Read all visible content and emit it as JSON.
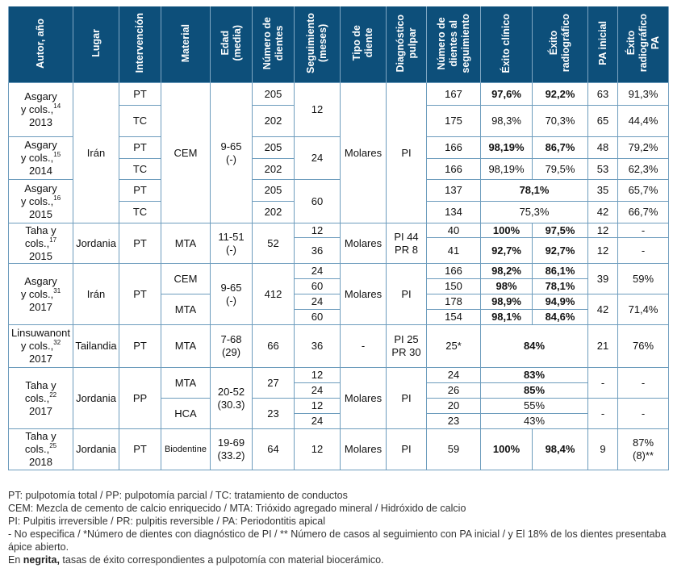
{
  "colors": {
    "header_bg": "#0d4f7a",
    "border": "#6d9cbd"
  },
  "table": {
    "headers": [
      "Autor, año",
      "Lugar",
      "Intervención",
      "Material",
      "Edad\n(media)",
      "Número de\ndientes",
      "Seguimiento\n(meses)",
      "Tipo de\ndiente",
      "Diagnóstico\npulpar",
      "Número de\ndientes al\nseguimiento",
      "Éxito clínico",
      "Éxito\nradiográfico",
      "PA inicial",
      "Éxito\nradiográfico\nPA"
    ],
    "rows": [
      [
        {
          "author": "Asgary\ny cols.,",
          "ref": "14",
          "year": "2013",
          "rs": 2
        },
        {
          "t": "Irán",
          "rs": 6
        },
        {
          "t": "PT"
        },
        {
          "t": "CEM",
          "rs": 6
        },
        {
          "t": "9-65\n(-)",
          "rs": 6
        },
        {
          "t": "205"
        },
        {
          "t": "12",
          "rs": 2
        },
        {
          "t": "Molares",
          "rs": 6
        },
        {
          "t": "PI",
          "rs": 6
        },
        {
          "t": "167"
        },
        {
          "t": "97,6%",
          "b": true
        },
        {
          "t": "92,2%",
          "b": true
        },
        {
          "t": "63"
        },
        {
          "t": "91,3%"
        }
      ],
      [
        {
          "t": "TC"
        },
        {
          "t": "202"
        },
        {
          "t": "175"
        },
        {
          "t": "98,3%"
        },
        {
          "t": "70,3%"
        },
        {
          "t": "65"
        },
        {
          "t": "44,4%"
        }
      ],
      [
        {
          "author": "Asgary\ny cols.,",
          "ref": "15",
          "year": "2014",
          "rs": 2
        },
        {
          "t": "PT"
        },
        {
          "t": "205"
        },
        {
          "t": "24",
          "rs": 2
        },
        {
          "t": "166"
        },
        {
          "t": "98,19%",
          "b": true
        },
        {
          "t": "86,7%",
          "b": true
        },
        {
          "t": "48"
        },
        {
          "t": "79,2%"
        }
      ],
      [
        {
          "t": "TC"
        },
        {
          "t": "202"
        },
        {
          "t": "166"
        },
        {
          "t": "98,19%"
        },
        {
          "t": "79,5%"
        },
        {
          "t": "53"
        },
        {
          "t": "62,3%"
        }
      ],
      [
        {
          "author": "Asgary\ny cols.,",
          "ref": "16",
          "year": "2015",
          "rs": 2
        },
        {
          "t": "PT"
        },
        {
          "t": "205"
        },
        {
          "t": "60",
          "rs": 2
        },
        {
          "t": "137"
        },
        {
          "t": "78,1%",
          "b": true,
          "cs": 2
        },
        {
          "t": "35"
        },
        {
          "t": "65,7%"
        }
      ],
      [
        {
          "t": "TC"
        },
        {
          "t": "202"
        },
        {
          "t": "134"
        },
        {
          "t": "75,3%",
          "cs": 2
        },
        {
          "t": "42"
        },
        {
          "t": "66,7%"
        }
      ],
      [
        {
          "author": "Taha y\ncols.,",
          "ref": "17",
          "year": "2015",
          "rs": 2
        },
        {
          "t": "Jordania",
          "rs": 2
        },
        {
          "t": "PT",
          "rs": 2
        },
        {
          "t": "MTA",
          "rs": 2
        },
        {
          "t": "11-51\n(-)",
          "rs": 2
        },
        {
          "t": "52",
          "rs": 2
        },
        {
          "t": "12"
        },
        {
          "t": "Molares",
          "rs": 2
        },
        {
          "t": "PI 44\nPR 8",
          "rs": 2
        },
        {
          "t": "40"
        },
        {
          "t": "100%",
          "b": true
        },
        {
          "t": "97,5%",
          "b": true
        },
        {
          "t": "12"
        },
        {
          "t": "-"
        }
      ],
      [
        {
          "t": "36"
        },
        {
          "t": "41"
        },
        {
          "t": "92,7%",
          "b": true
        },
        {
          "t": "92,7%",
          "b": true
        },
        {
          "t": "12"
        },
        {
          "t": "-"
        }
      ],
      [
        {
          "author": "Asgary\ny cols.,",
          "ref": "31",
          "year": "2017",
          "rs": 4
        },
        {
          "t": "Irán",
          "rs": 4
        },
        {
          "t": "PT",
          "rs": 4
        },
        {
          "t": "CEM",
          "rs": 2
        },
        {
          "t": "9-65\n(-)",
          "rs": 4
        },
        {
          "t": "412",
          "rs": 4
        },
        {
          "t": "24"
        },
        {
          "t": "Molares",
          "rs": 4
        },
        {
          "t": "PI",
          "rs": 4
        },
        {
          "t": "166"
        },
        {
          "t": "98,2%",
          "b": true
        },
        {
          "t": "86,1%",
          "b": true
        },
        {
          "t": "39",
          "rs": 2
        },
        {
          "t": "59%",
          "rs": 2
        }
      ],
      [
        {
          "t": "60"
        },
        {
          "t": "150"
        },
        {
          "t": "98%",
          "b": true
        },
        {
          "t": "78,1%",
          "b": true
        }
      ],
      [
        {
          "t": "MTA",
          "rs": 2
        },
        {
          "t": "24"
        },
        {
          "t": "178"
        },
        {
          "t": "98,9%",
          "b": true
        },
        {
          "t": "94,9%",
          "b": true
        },
        {
          "t": "42",
          "rs": 2
        },
        {
          "t": "71,4%",
          "rs": 2
        }
      ],
      [
        {
          "t": "60"
        },
        {
          "t": "154"
        },
        {
          "t": "98,1%",
          "b": true
        },
        {
          "t": "84,6%",
          "b": true
        }
      ],
      [
        {
          "author": "Linsuwanont\ny cols.,",
          "ref": "32",
          "year": "2017"
        },
        {
          "t": "Tailandia"
        },
        {
          "t": "PT"
        },
        {
          "t": "MTA"
        },
        {
          "t": "7-68\n(29)"
        },
        {
          "t": "66"
        },
        {
          "t": "36"
        },
        {
          "t": "-"
        },
        {
          "t": "PI 25\nPR 30"
        },
        {
          "t": "25*"
        },
        {
          "t": "84%",
          "b": true,
          "cs": 2
        },
        {
          "t": "21"
        },
        {
          "t": "76%"
        }
      ],
      [
        {
          "author": "Taha y\ncols.,",
          "ref": "22",
          "year": "2017",
          "rs": 4
        },
        {
          "t": "Jordania",
          "rs": 4
        },
        {
          "t": "PP",
          "rs": 4
        },
        {
          "t": "MTA",
          "rs": 2
        },
        {
          "t": "20-52\n(30.3)",
          "rs": 4
        },
        {
          "t": "27",
          "rs": 2
        },
        {
          "t": "12"
        },
        {
          "t": "Molares",
          "rs": 4
        },
        {
          "t": "PI",
          "rs": 4
        },
        {
          "t": "24"
        },
        {
          "t": "83%",
          "b": true,
          "cs": 2
        },
        {
          "t": "-",
          "rs": 2
        },
        {
          "t": "-",
          "rs": 2
        }
      ],
      [
        {
          "t": "24"
        },
        {
          "t": "26"
        },
        {
          "t": "85%",
          "b": true,
          "cs": 2
        }
      ],
      [
        {
          "t": "HCA",
          "rs": 2
        },
        {
          "t": "23",
          "rs": 2
        },
        {
          "t": "12"
        },
        {
          "t": "20"
        },
        {
          "t": "55%",
          "cs": 2
        },
        {
          "t": "-",
          "rs": 2
        },
        {
          "t": "-",
          "rs": 2
        }
      ],
      [
        {
          "t": "24"
        },
        {
          "t": "23"
        },
        {
          "t": "43%",
          "cs": 2
        }
      ],
      [
        {
          "author": "Taha y\ncols.,",
          "ref": "25",
          "year": "2018"
        },
        {
          "t": "Jordania"
        },
        {
          "t": "PT"
        },
        {
          "t": "Biodentine",
          "small": true
        },
        {
          "t": "19-69\n(33.2)"
        },
        {
          "t": "64"
        },
        {
          "t": "12"
        },
        {
          "t": "Molares"
        },
        {
          "t": "PI"
        },
        {
          "t": "59"
        },
        {
          "t": "100%",
          "b": true
        },
        {
          "t": "98,4%",
          "b": true
        },
        {
          "t": "9"
        },
        {
          "t": "87%\n(8)**"
        }
      ]
    ]
  },
  "notes": {
    "line1": "PT: pulpotomía total / PP: pulpotomía parcial / TC: tratamiento de conductos",
    "line2": "CEM: Mezcla de cemento de calcio enriquecido / MTA: Trióxido agregado mineral / Hidróxido de calcio",
    "line3": "PI: Pulpitis irreversible / PR: pulpitis reversible / PA: Periodontitis apical",
    "line4": "- No especifica / *Número de dientes con diagnóstico de PI / ** Número de casos al seguimiento con PA inicial / y El 18% de los dientes presentaba ápice abierto.",
    "line5_prefix": "En ",
    "line5_bold": "negrita,",
    "line5_rest": " tasas de éxito correspondientes a pulpotomía con material biocerámico."
  }
}
